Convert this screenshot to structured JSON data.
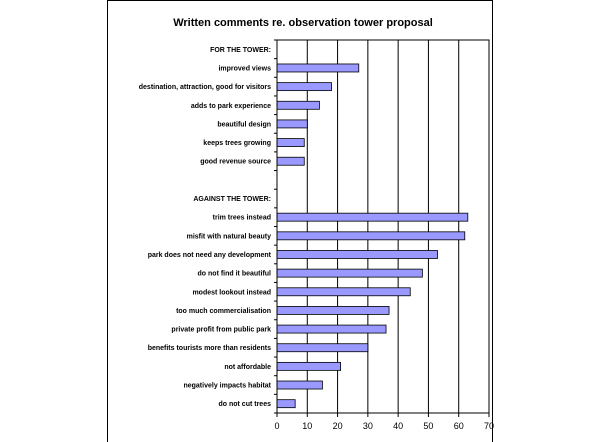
{
  "chart_data": {
    "type": "bar",
    "orientation": "horizontal",
    "title": "Written comments re. observation tower proposal",
    "xlabel": "",
    "ylabel": "",
    "xlim": [
      0,
      70
    ],
    "xticks": [
      0,
      10,
      20,
      30,
      40,
      50,
      60,
      70
    ],
    "grid": true,
    "bar_color": "#9999ff",
    "categories": [
      "FOR THE TOWER:",
      "improved views",
      "destination, attraction, good for visitors",
      "adds to park experience",
      "beautiful design",
      "keeps trees growing",
      "good revenue source",
      "",
      "AGAINST THE TOWER:",
      "trim trees instead",
      "misfit with natural beauty",
      "park does not need any development",
      "do not find it beautiful",
      "modest lookout instead",
      "too much commercialisation",
      "private profit from public park",
      "benefits tourists more than residents",
      "not affordable",
      "negatively impacts habitat",
      "do not cut trees"
    ],
    "values": [
      null,
      27,
      18,
      14,
      10,
      9,
      9,
      null,
      null,
      63,
      62,
      53,
      48,
      44,
      37,
      36,
      30,
      21,
      15,
      6
    ]
  }
}
